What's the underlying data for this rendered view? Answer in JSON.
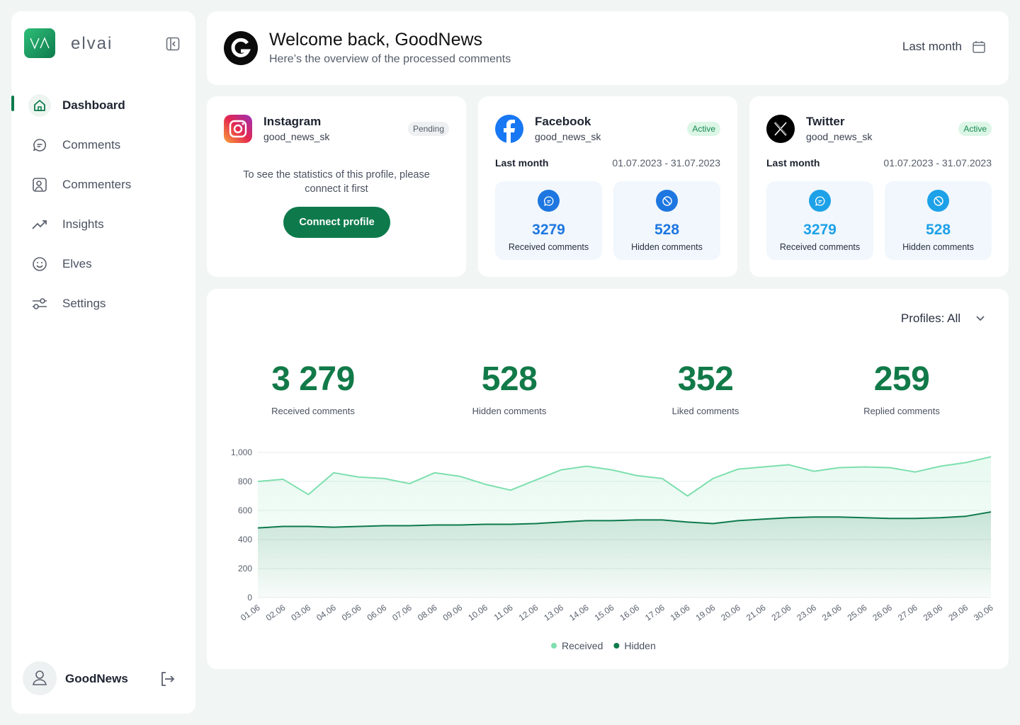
{
  "sidebar": {
    "brand": "elvai",
    "nav": [
      "Dashboard",
      "Comments",
      "Commenters",
      "Insights",
      "Elves",
      "Settings"
    ],
    "user": "GoodNews"
  },
  "header": {
    "title": "Welcome back, GoodNews",
    "subtitle": "Here’s the overview of the processed comments",
    "period": "Last month"
  },
  "profiles": [
    {
      "name": "Instagram",
      "handle": "good_news_sk",
      "status": "Pending",
      "message": "To see the statistics of this profile, please connect it first",
      "button": "Connect profile"
    },
    {
      "name": "Facebook",
      "handle": "good_news_sk",
      "status": "Active",
      "period": "Last month",
      "date_range": "01.07.2023 - 31.07.2023",
      "stats": [
        {
          "value": 3279,
          "label": "Received comments"
        },
        {
          "value": 528,
          "label": "Hidden comments"
        }
      ]
    },
    {
      "name": "Twitter",
      "handle": "good_news_sk",
      "status": "Active",
      "period": "Last month",
      "date_range": "01.07.2023 - 31.07.2023",
      "stats": [
        {
          "value": 3279,
          "label": "Received comments"
        },
        {
          "value": 528,
          "label": "Hidden comments"
        }
      ]
    }
  ],
  "summary": {
    "filter": "Profiles: All",
    "stats": [
      {
        "value": "3 279",
        "label": "Received comments"
      },
      {
        "value": "528",
        "label": "Hidden comments"
      },
      {
        "value": "352",
        "label": "Liked comments"
      },
      {
        "value": "259",
        "label": "Replied comments"
      }
    ]
  },
  "chart_data": {
    "type": "line",
    "categories": [
      "01.06",
      "02.06",
      "03.06",
      "04.06",
      "05.06",
      "06.06",
      "07.06",
      "08.06",
      "09.06",
      "10.06",
      "11.06",
      "12.06",
      "13.06",
      "14.06",
      "15.06",
      "16.06",
      "17.06",
      "18.06",
      "19.06",
      "20.06",
      "21.06",
      "22.06",
      "23.06",
      "24.06",
      "25.06",
      "26.06",
      "27.06",
      "28.06",
      "29.06",
      "30.06"
    ],
    "series": [
      {
        "name": "Received",
        "color": "#7ddfae",
        "values": [
          800,
          815,
          710,
          860,
          830,
          820,
          785,
          860,
          835,
          780,
          740,
          810,
          880,
          905,
          880,
          840,
          820,
          700,
          820,
          885,
          900,
          915,
          870,
          895,
          900,
          895,
          865,
          905,
          930,
          970
        ]
      },
      {
        "name": "Hidden",
        "color": "#0e7a4c",
        "values": [
          480,
          490,
          490,
          485,
          490,
          495,
          495,
          500,
          500,
          505,
          505,
          510,
          520,
          530,
          530,
          535,
          535,
          520,
          510,
          530,
          540,
          550,
          555,
          555,
          550,
          545,
          545,
          550,
          560,
          590
        ]
      }
    ],
    "ylim": [
      0,
      1000
    ],
    "yticks": [
      0,
      200,
      400,
      600,
      800,
      {
        "value": 1000,
        "label": "1,000"
      }
    ],
    "grid": true,
    "area": true,
    "legend": "bottom"
  }
}
